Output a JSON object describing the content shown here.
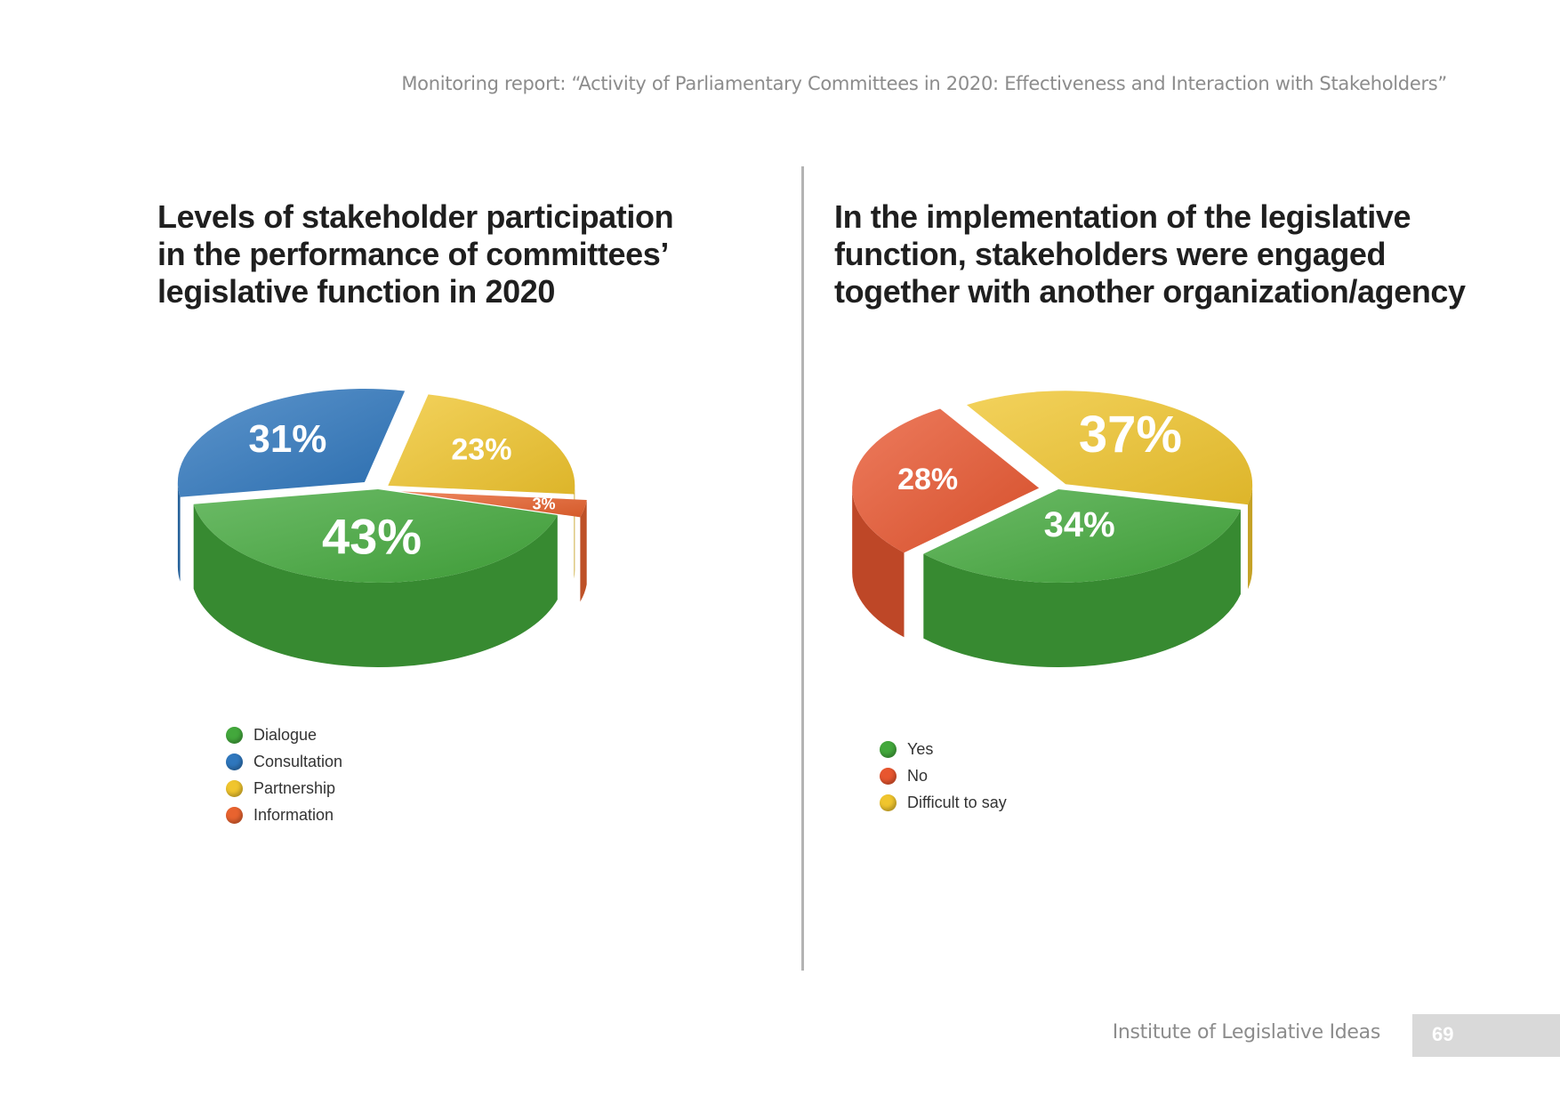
{
  "header": {
    "running_title": "Monitoring report: “Activity of Parliamentary Committees in 2020: Effectiveness and Interaction with Stakeholders”"
  },
  "footer": {
    "organization": "Institute of Legislative Ideas",
    "page_number": "69"
  },
  "chart_data": [
    {
      "type": "pie",
      "title_lines": [
        "Levels of stakeholder participation",
        "in the performance of committees’",
        "legislative function in 2020"
      ],
      "labels": [
        "Dialogue",
        "Consultation",
        "Partnership",
        "Information"
      ],
      "values": [
        43,
        31,
        23,
        3
      ],
      "value_labels": [
        "43%",
        "31%",
        "23%",
        "3%"
      ],
      "colors": [
        "#43a83c",
        "#2f77bd",
        "#f0c52e",
        "#e8632f"
      ],
      "legend_position": "bottom-left"
    },
    {
      "type": "pie",
      "title_lines": [
        "In the implementation of the legislative",
        "function, stakeholders were engaged",
        "together with another organization/agency"
      ],
      "labels": [
        "Yes",
        "No",
        "Difficult to say"
      ],
      "values": [
        34,
        28,
        37
      ],
      "value_labels": [
        "34%",
        "28%",
        "37%"
      ],
      "colors": [
        "#43a83c",
        "#e8562f",
        "#f0c52e"
      ],
      "legend_position": "bottom-left"
    }
  ]
}
